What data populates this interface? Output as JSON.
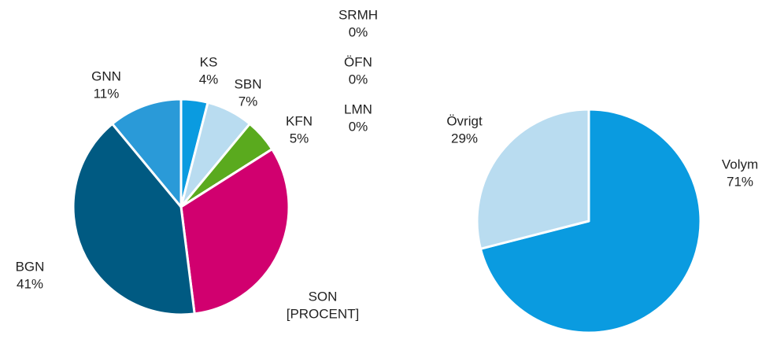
{
  "chart_data": [
    {
      "type": "pie",
      "categories": [
        "KS",
        "SBN",
        "KFN",
        "LMN",
        "ÖFN",
        "SRMH",
        "SON",
        "BGN",
        "GNN"
      ],
      "values": [
        4,
        7,
        5,
        0,
        0,
        0,
        32,
        41,
        11
      ],
      "value_labels": [
        "4%",
        "7%",
        "5%",
        "0%",
        "0%",
        "0%",
        "[PROCENT]",
        "41%",
        "11%"
      ],
      "colors": [
        "#0a9be0",
        "#b9dcf0",
        "#5aaa1e",
        "#888888",
        "#888888",
        "#888888",
        "#d1006f",
        "#005a82",
        "#2a9ad8"
      ]
    },
    {
      "type": "pie",
      "categories": [
        "Volym",
        "Övrigt"
      ],
      "values": [
        71,
        29
      ],
      "value_labels": [
        "71%",
        "29%"
      ],
      "colors": [
        "#0a9be0",
        "#b9dcf0"
      ]
    }
  ]
}
